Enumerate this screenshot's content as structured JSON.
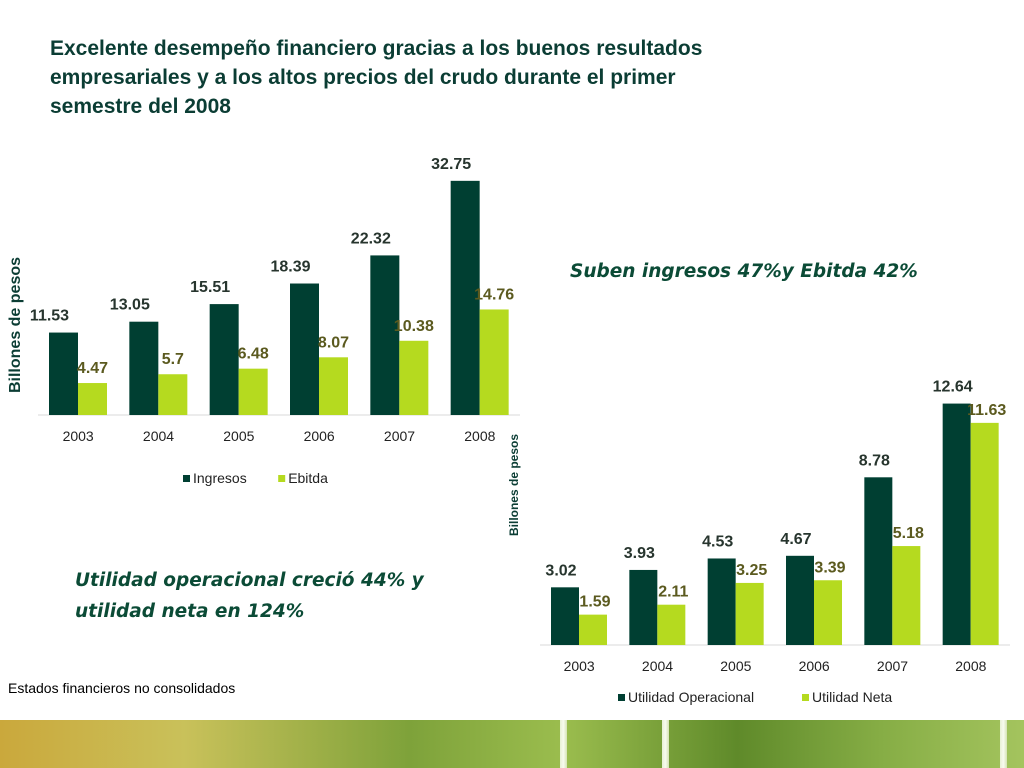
{
  "title": "Excelente desempeño financiero gracias a los buenos resultados empresariales y a los altos precios del crudo durante el primer semestre del 2008",
  "callouts": {
    "top_right": "Suben ingresos 47%y Ebitda 42%",
    "left_line1": "Utilidad operacional creció 44% y",
    "left_line2": "utilidad neta en 124%"
  },
  "footnote": "Estados financieros no consolidados",
  "colors": {
    "series_dark": "#003f32",
    "series_light": "#b5da1f",
    "label_dark": "#27352e",
    "label_light": "#5b5a1f",
    "callout_text": "#0b4b36"
  },
  "chart_data": [
    {
      "type": "bar",
      "categories": [
        "2003",
        "2004",
        "2005",
        "2006",
        "2007",
        "2008"
      ],
      "series": [
        {
          "name": "Ingresos",
          "values": [
            11.53,
            13.05,
            15.51,
            18.39,
            22.32,
            32.75
          ]
        },
        {
          "name": "Ebitda",
          "values": [
            4.47,
            5.7,
            6.48,
            8.07,
            10.38,
            14.76
          ]
        }
      ],
      "ylabel": "Billones de  pesos",
      "data_labels": true,
      "legend": "bottom",
      "grid": false
    },
    {
      "type": "bar",
      "categories": [
        "2003",
        "2004",
        "2005",
        "2006",
        "2007",
        "2008"
      ],
      "series": [
        {
          "name": "Utilidad Operacional",
          "values": [
            3.02,
            3.93,
            4.53,
            4.67,
            8.78,
            12.64
          ]
        },
        {
          "name": "Utilidad Neta",
          "values": [
            1.59,
            2.11,
            3.25,
            3.39,
            5.18,
            11.63
          ]
        }
      ],
      "ylabel": "Billones de pesos",
      "data_labels": true,
      "legend": "bottom",
      "grid": false
    }
  ]
}
